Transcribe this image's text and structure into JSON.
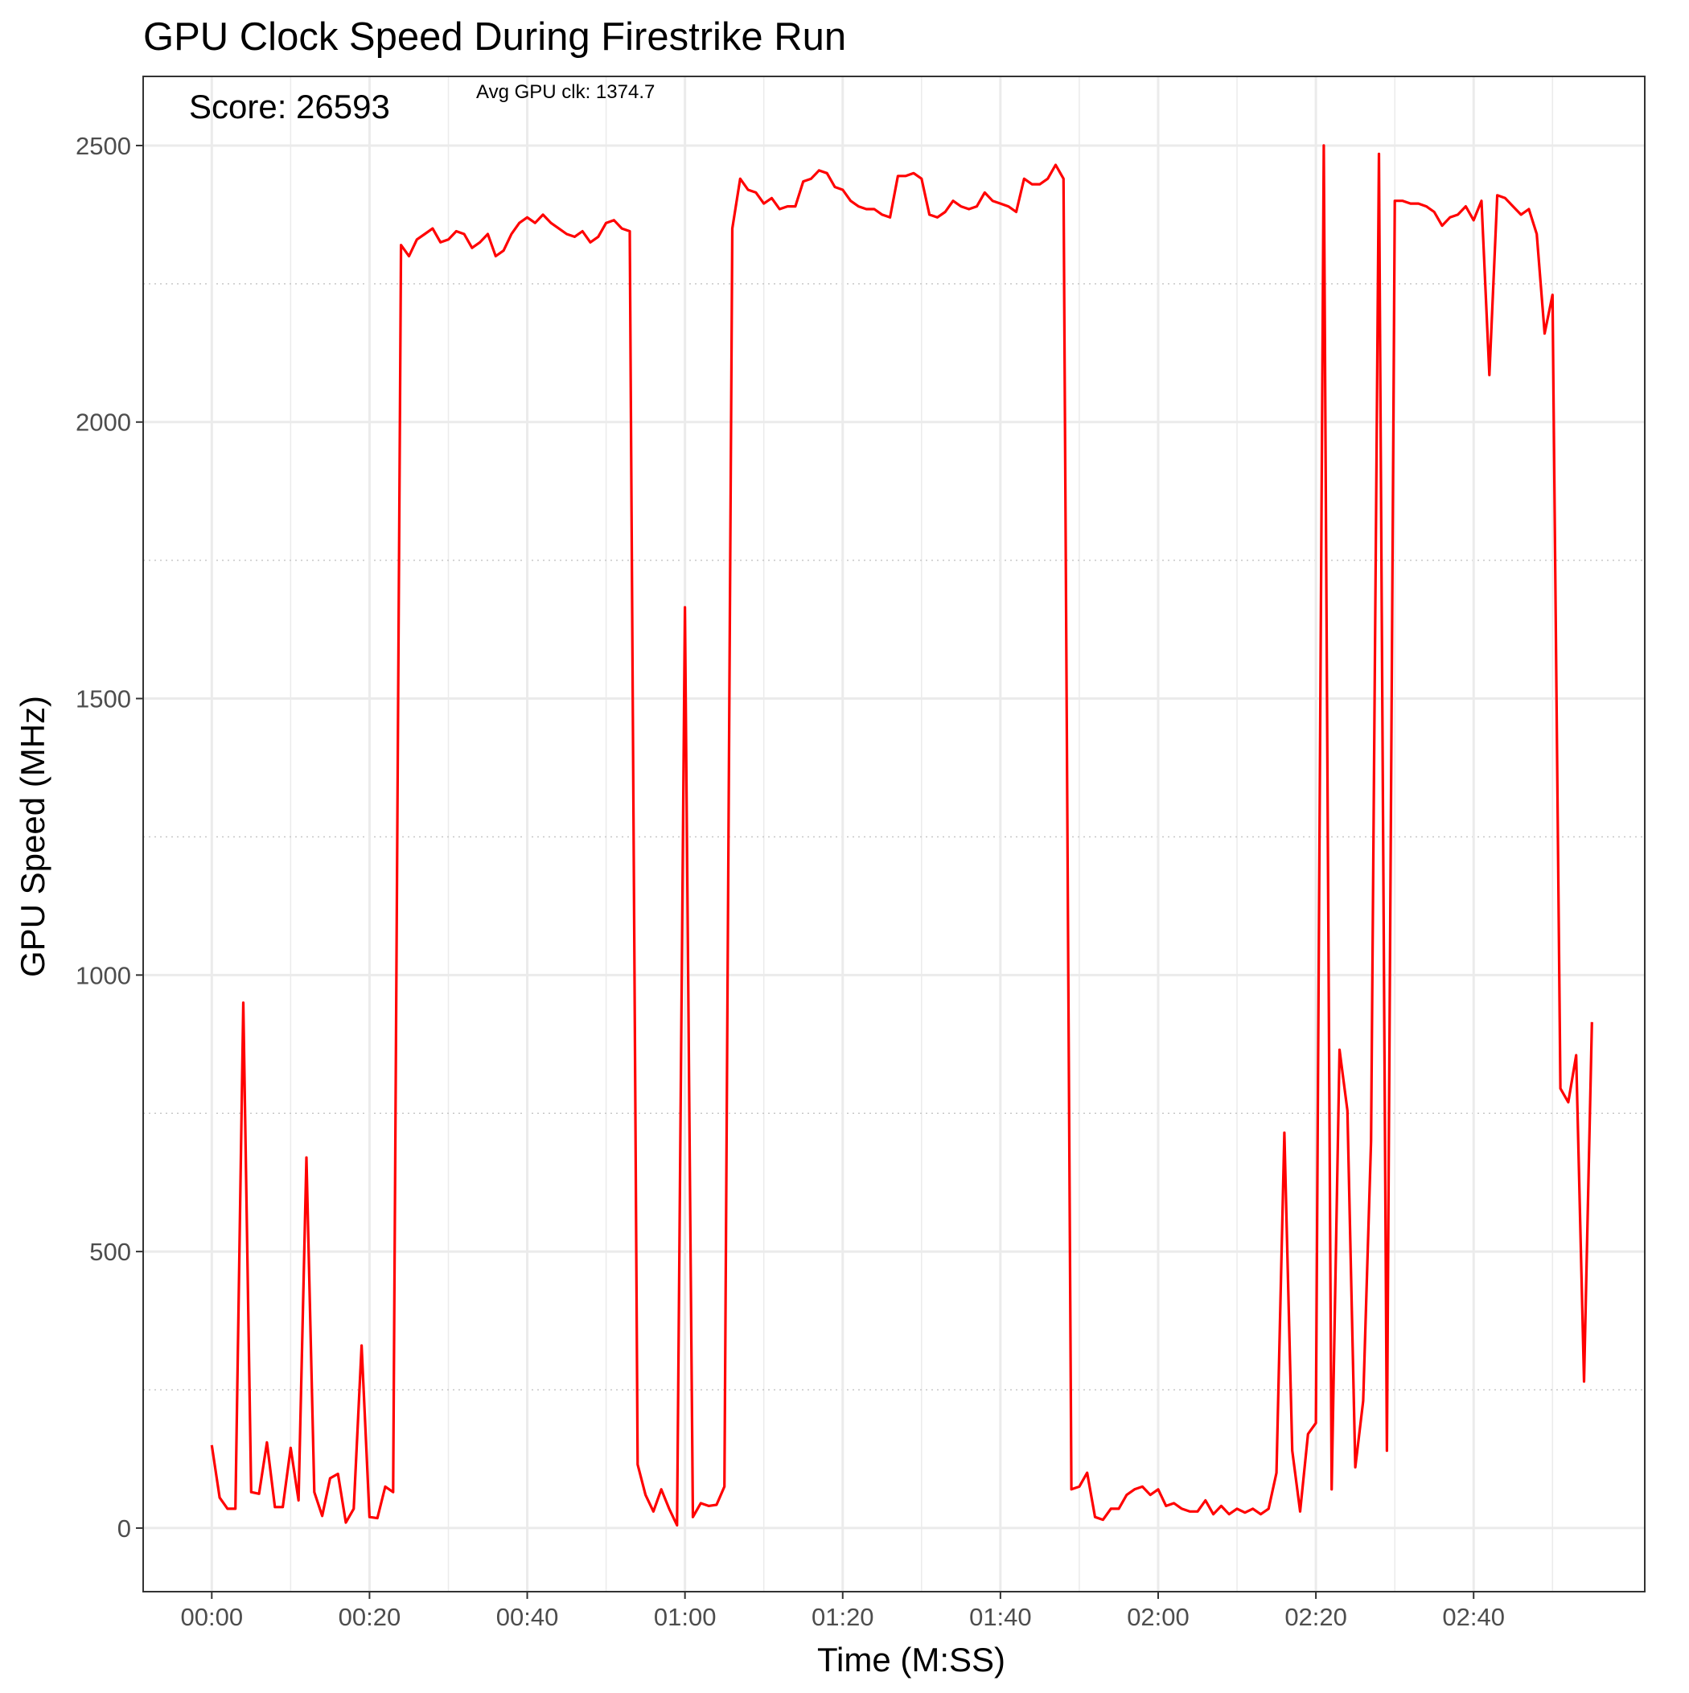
{
  "chart_data": {
    "type": "line",
    "title": "GPU Clock Speed During Firestrike Run",
    "xlabel": "Time (M:SS)",
    "ylabel": "GPU Speed (MHz)",
    "annotations": {
      "score": "Score: 26593",
      "avg": "Avg GPU clk: 1374.7"
    },
    "xlim_seconds": [
      -8.7,
      181.7
    ],
    "ylim": [
      -115,
      2625
    ],
    "x_major_ticks": [
      {
        "seconds": 0,
        "label": "00:00"
      },
      {
        "seconds": 20,
        "label": "00:20"
      },
      {
        "seconds": 40,
        "label": "00:40"
      },
      {
        "seconds": 60,
        "label": "01:00"
      },
      {
        "seconds": 80,
        "label": "01:20"
      },
      {
        "seconds": 100,
        "label": "01:40"
      },
      {
        "seconds": 120,
        "label": "02:00"
      },
      {
        "seconds": 140,
        "label": "02:20"
      },
      {
        "seconds": 160,
        "label": "02:40"
      }
    ],
    "x_minor_ticks_seconds": [
      10,
      30,
      50,
      70,
      90,
      110,
      130,
      150,
      170
    ],
    "y_major_ticks": [
      0,
      500,
      1000,
      1500,
      2000,
      2500
    ],
    "y_minor_ticks": [
      250,
      750,
      1250,
      1750,
      2250
    ],
    "grid": true,
    "series": [
      {
        "color": "#ff0000",
        "points": [
          [
            "00:00",
            150
          ],
          [
            "00:01",
            55
          ],
          [
            "00:02",
            35
          ],
          [
            "00:03",
            35
          ],
          [
            "00:04",
            950
          ],
          [
            "00:05",
            65
          ],
          [
            "00:06",
            62
          ],
          [
            "00:07",
            155
          ],
          [
            "00:08",
            38
          ],
          [
            "00:09",
            38
          ],
          [
            "00:10",
            145
          ],
          [
            "00:11",
            50
          ],
          [
            "00:12",
            670
          ],
          [
            "00:13",
            65
          ],
          [
            "00:14",
            22
          ],
          [
            "00:15",
            90
          ],
          [
            "00:16",
            98
          ],
          [
            "00:17",
            10
          ],
          [
            "00:18",
            35
          ],
          [
            "00:19",
            330
          ],
          [
            "00:20",
            20
          ],
          [
            "00:21",
            18
          ],
          [
            "00:22",
            75
          ],
          [
            "00:23",
            65
          ],
          [
            "00:24",
            2320
          ],
          [
            "00:25",
            2300
          ],
          [
            "00:26",
            2330
          ],
          [
            "00:27",
            2340
          ],
          [
            "00:28",
            2350
          ],
          [
            "00:29",
            2325
          ],
          [
            "00:30",
            2330
          ],
          [
            "00:31",
            2345
          ],
          [
            "00:32",
            2340
          ],
          [
            "00:33",
            2315
          ],
          [
            "00:34",
            2325
          ],
          [
            "00:35",
            2340
          ],
          [
            "00:36",
            2300
          ],
          [
            "00:37",
            2310
          ],
          [
            "00:38",
            2340
          ],
          [
            "00:39",
            2360
          ],
          [
            "00:40",
            2370
          ],
          [
            "00:41",
            2360
          ],
          [
            "00:42",
            2375
          ],
          [
            "00:43",
            2360
          ],
          [
            "00:44",
            2350
          ],
          [
            "00:45",
            2340
          ],
          [
            "00:46",
            2335
          ],
          [
            "00:47",
            2345
          ],
          [
            "00:48",
            2325
          ],
          [
            "00:49",
            2335
          ],
          [
            "00:50",
            2360
          ],
          [
            "00:51",
            2365
          ],
          [
            "00:52",
            2350
          ],
          [
            "00:53",
            2345
          ],
          [
            "00:54",
            115
          ],
          [
            "00:55",
            60
          ],
          [
            "00:56",
            30
          ],
          [
            "00:57",
            70
          ],
          [
            "00:58",
            35
          ],
          [
            "00:59",
            5
          ],
          [
            "01:00",
            1665
          ],
          [
            "01:01",
            20
          ],
          [
            "01:02",
            45
          ],
          [
            "01:03",
            40
          ],
          [
            "01:04",
            42
          ],
          [
            "01:05",
            75
          ],
          [
            "01:06",
            2350
          ],
          [
            "01:07",
            2440
          ],
          [
            "01:08",
            2420
          ],
          [
            "01:09",
            2415
          ],
          [
            "01:10",
            2395
          ],
          [
            "01:11",
            2405
          ],
          [
            "01:12",
            2385
          ],
          [
            "01:13",
            2390
          ],
          [
            "01:14",
            2390
          ],
          [
            "01:15",
            2435
          ],
          [
            "01:16",
            2440
          ],
          [
            "01:17",
            2455
          ],
          [
            "01:18",
            2450
          ],
          [
            "01:19",
            2425
          ],
          [
            "01:20",
            2420
          ],
          [
            "01:21",
            2400
          ],
          [
            "01:22",
            2390
          ],
          [
            "01:23",
            2385
          ],
          [
            "01:24",
            2385
          ],
          [
            "01:25",
            2375
          ],
          [
            "01:26",
            2370
          ],
          [
            "01:27",
            2445
          ],
          [
            "01:28",
            2445
          ],
          [
            "01:29",
            2450
          ],
          [
            "01:30",
            2440
          ],
          [
            "01:31",
            2375
          ],
          [
            "01:32",
            2370
          ],
          [
            "01:33",
            2380
          ],
          [
            "01:34",
            2400
          ],
          [
            "01:35",
            2390
          ],
          [
            "01:36",
            2385
          ],
          [
            "01:37",
            2390
          ],
          [
            "01:38",
            2415
          ],
          [
            "01:39",
            2400
          ],
          [
            "01:40",
            2395
          ],
          [
            "01:41",
            2390
          ],
          [
            "01:42",
            2380
          ],
          [
            "01:43",
            2440
          ],
          [
            "01:44",
            2430
          ],
          [
            "01:45",
            2430
          ],
          [
            "01:46",
            2440
          ],
          [
            "01:47",
            2465
          ],
          [
            "01:48",
            2440
          ],
          [
            "01:49",
            70
          ],
          [
            "01:50",
            75
          ],
          [
            "01:51",
            100
          ],
          [
            "01:52",
            20
          ],
          [
            "01:53",
            15
          ],
          [
            "01:54",
            35
          ],
          [
            "01:55",
            35
          ],
          [
            "01:56",
            60
          ],
          [
            "01:57",
            70
          ],
          [
            "01:58",
            75
          ],
          [
            "01:59",
            60
          ],
          [
            "02:00",
            70
          ],
          [
            "02:01",
            40
          ],
          [
            "02:02",
            45
          ],
          [
            "02:03",
            35
          ],
          [
            "02:04",
            30
          ],
          [
            "02:05",
            30
          ],
          [
            "02:06",
            50
          ],
          [
            "02:07",
            25
          ],
          [
            "02:08",
            40
          ],
          [
            "02:09",
            25
          ],
          [
            "02:10",
            35
          ],
          [
            "02:11",
            28
          ],
          [
            "02:12",
            35
          ],
          [
            "02:13",
            25
          ],
          [
            "02:14",
            35
          ],
          [
            "02:15",
            100
          ],
          [
            "02:16",
            715
          ],
          [
            "02:17",
            140
          ],
          [
            "02:18",
            30
          ],
          [
            "02:19",
            170
          ],
          [
            "02:20",
            190
          ],
          [
            "02:21",
            2500
          ],
          [
            "02:22",
            70
          ],
          [
            "02:23",
            865
          ],
          [
            "02:24",
            755
          ],
          [
            "02:25",
            110
          ],
          [
            "02:26",
            230
          ],
          [
            "02:27",
            700
          ],
          [
            "02:28",
            2485
          ],
          [
            "02:29",
            140
          ],
          [
            "02:30",
            2400
          ],
          [
            "02:31",
            2400
          ],
          [
            "02:32",
            2395
          ],
          [
            "02:33",
            2395
          ],
          [
            "02:34",
            2390
          ],
          [
            "02:35",
            2380
          ],
          [
            "02:36",
            2355
          ],
          [
            "02:37",
            2370
          ],
          [
            "02:38",
            2375
          ],
          [
            "02:39",
            2390
          ],
          [
            "02:40",
            2365
          ],
          [
            "02:41",
            2400
          ],
          [
            "02:42",
            2085
          ],
          [
            "02:43",
            2410
          ],
          [
            "02:44",
            2405
          ],
          [
            "02:45",
            2390
          ],
          [
            "02:46",
            2375
          ],
          [
            "02:47",
            2385
          ],
          [
            "02:48",
            2340
          ],
          [
            "02:49",
            2160
          ],
          [
            "02:50",
            2230
          ],
          [
            "02:51",
            795
          ],
          [
            "02:52",
            770
          ],
          [
            "02:53",
            855
          ],
          [
            "02:54",
            265
          ],
          [
            "02:55",
            915
          ]
        ]
      }
    ]
  }
}
